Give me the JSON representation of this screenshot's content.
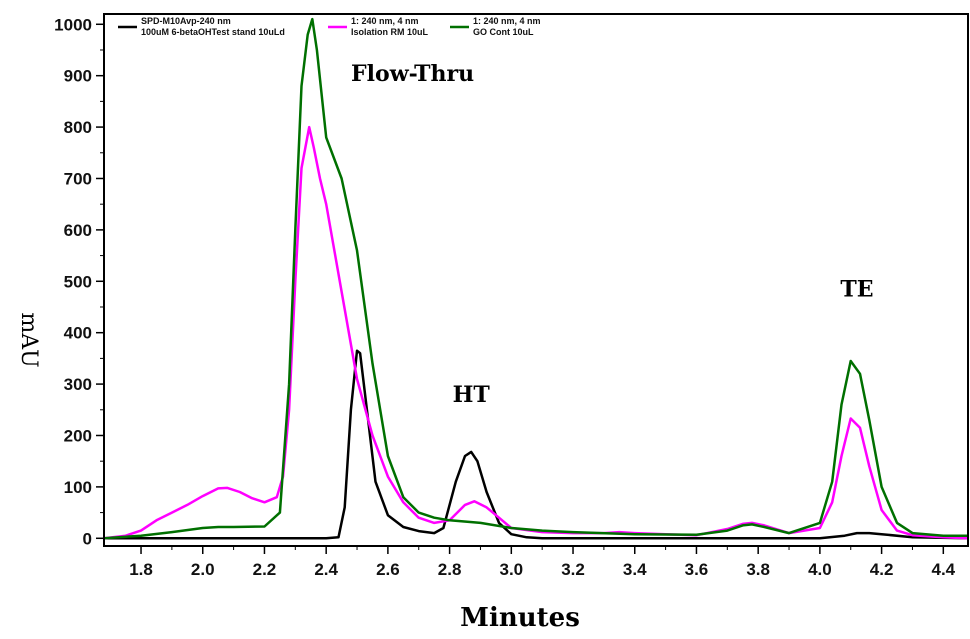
{
  "chart_data": {
    "type": "line",
    "xlabel": "Minutes",
    "ylabel": "mAU",
    "xlim": [
      1.68,
      4.48
    ],
    "ylim": [
      -15,
      1020
    ],
    "x_ticks": [
      "1.8",
      "2.0",
      "2.2",
      "2.4",
      "2.6",
      "2.8",
      "3.0",
      "3.2",
      "3.4",
      "3.6",
      "3.8",
      "4.0",
      "4.2",
      "4.4"
    ],
    "y_ticks": [
      "0",
      "100",
      "200",
      "300",
      "400",
      "500",
      "600",
      "700",
      "800",
      "900",
      "1000"
    ],
    "grid": false,
    "legend_position": "top-left",
    "annotations": [
      {
        "text": "Flow-Thru",
        "x": 2.68,
        "y": 890
      },
      {
        "text": "HT",
        "x": 2.87,
        "y": 265
      },
      {
        "text": "TE",
        "x": 4.12,
        "y": 470
      }
    ],
    "series": [
      {
        "name": "SPD-M10Avp-240 nm",
        "sublabel": "100uM 6-betaOHTest stand 10uLd",
        "color": "#000000",
        "x": [
          1.68,
          2.4,
          2.44,
          2.46,
          2.48,
          2.5,
          2.51,
          2.53,
          2.56,
          2.6,
          2.65,
          2.7,
          2.75,
          2.78,
          2.82,
          2.85,
          2.87,
          2.89,
          2.92,
          2.96,
          3.0,
          3.05,
          3.1,
          3.2,
          3.4,
          3.6,
          3.8,
          4.0,
          4.08,
          4.12,
          4.16,
          4.2,
          4.3,
          4.48
        ],
        "y": [
          0,
          0,
          2,
          60,
          250,
          365,
          360,
          260,
          110,
          45,
          22,
          14,
          10,
          20,
          110,
          160,
          168,
          150,
          90,
          30,
          8,
          2,
          0,
          0,
          0,
          0,
          0,
          0,
          5,
          10,
          10,
          8,
          2,
          0
        ]
      },
      {
        "name": "1: 240 nm, 4 nm",
        "sublabel": "Isolation RM 10uL",
        "color": "#ff00ff",
        "x": [
          1.68,
          1.75,
          1.8,
          1.85,
          1.9,
          1.95,
          2.0,
          2.05,
          2.08,
          2.12,
          2.16,
          2.2,
          2.24,
          2.26,
          2.28,
          2.3,
          2.32,
          2.345,
          2.36,
          2.38,
          2.4,
          2.45,
          2.5,
          2.55,
          2.6,
          2.65,
          2.7,
          2.75,
          2.8,
          2.85,
          2.88,
          2.92,
          2.96,
          3.0,
          3.1,
          3.2,
          3.3,
          3.35,
          3.4,
          3.5,
          3.6,
          3.7,
          3.75,
          3.78,
          3.82,
          3.9,
          4.0,
          4.04,
          4.07,
          4.1,
          4.13,
          4.16,
          4.2,
          4.25,
          4.3,
          4.4,
          4.48
        ],
        "y": [
          0,
          5,
          15,
          35,
          50,
          65,
          82,
          97,
          98,
          90,
          78,
          70,
          80,
          120,
          250,
          500,
          720,
          800,
          760,
          700,
          650,
          480,
          310,
          200,
          120,
          70,
          40,
          30,
          35,
          65,
          72,
          60,
          40,
          20,
          12,
          10,
          10,
          12,
          10,
          8,
          6,
          18,
          28,
          30,
          25,
          10,
          20,
          70,
          160,
          233,
          215,
          140,
          55,
          15,
          6,
          2,
          0
        ]
      },
      {
        "name": "1: 240 nm, 4 nm",
        "sublabel": "GO Cont 10uL",
        "color": "#007000",
        "x": [
          1.68,
          1.8,
          1.9,
          2.0,
          2.05,
          2.1,
          2.2,
          2.25,
          2.28,
          2.3,
          2.32,
          2.34,
          2.355,
          2.37,
          2.4,
          2.45,
          2.5,
          2.55,
          2.6,
          2.65,
          2.7,
          2.75,
          2.8,
          2.9,
          3.0,
          3.1,
          3.2,
          3.4,
          3.6,
          3.7,
          3.75,
          3.78,
          3.82,
          3.9,
          4.0,
          4.04,
          4.07,
          4.1,
          4.13,
          4.16,
          4.2,
          4.25,
          4.3,
          4.4,
          4.48
        ],
        "y": [
          0,
          5,
          12,
          20,
          22,
          22,
          23,
          50,
          300,
          600,
          880,
          980,
          1010,
          950,
          780,
          700,
          560,
          340,
          160,
          80,
          50,
          40,
          35,
          30,
          20,
          15,
          12,
          8,
          7,
          15,
          25,
          27,
          22,
          10,
          30,
          110,
          260,
          345,
          320,
          230,
          100,
          30,
          10,
          5,
          5
        ]
      }
    ]
  }
}
